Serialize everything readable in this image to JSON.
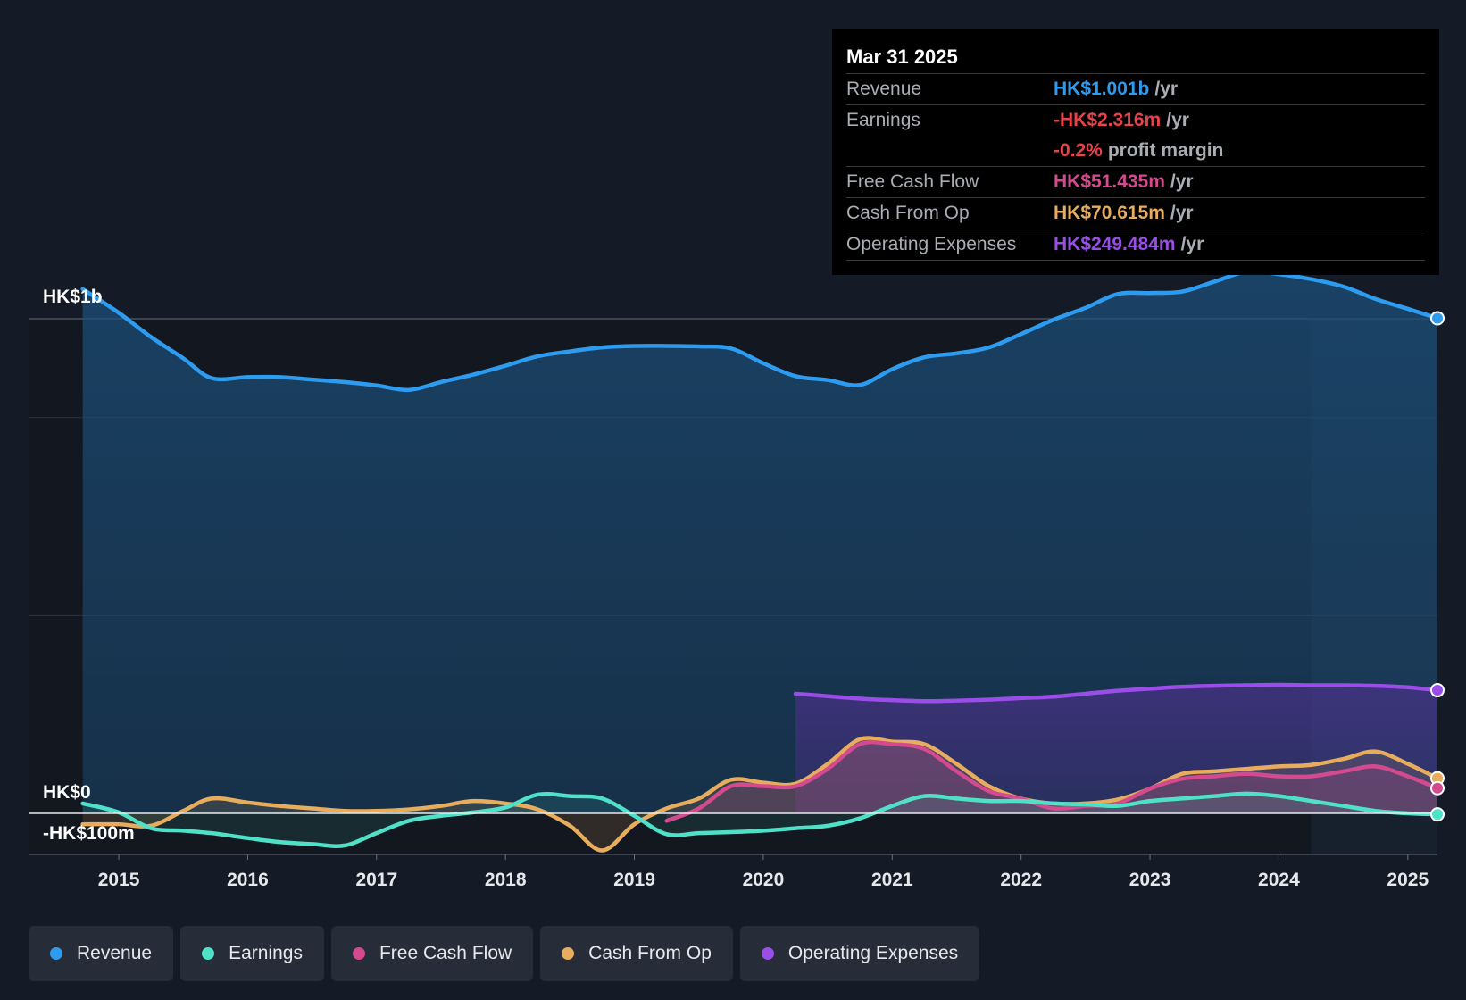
{
  "chart_data": {
    "type": "area",
    "currency": "HK$",
    "y_axis_labels": [
      "HK$1b",
      "HK$0",
      "-HK$100m"
    ],
    "ylim": [
      -100,
      1200
    ],
    "x_ticks": [
      "2015",
      "2016",
      "2017",
      "2018",
      "2019",
      "2020",
      "2021",
      "2022",
      "2023",
      "2024",
      "2025"
    ],
    "x_tick_values": [
      2015,
      2016,
      2017,
      2018,
      2019,
      2020,
      2021,
      2022,
      2023,
      2024,
      2025
    ],
    "xlim": [
      2014.3,
      2025.23
    ],
    "forecast_start": 2024.25,
    "series": [
      {
        "name": "Revenue",
        "color": "#2d9cf0",
        "x": [
          2014.72,
          2015.0,
          2015.25,
          2015.5,
          2015.72,
          2016.0,
          2016.25,
          2016.5,
          2016.75,
          2017.0,
          2017.25,
          2017.5,
          2017.75,
          2018.0,
          2018.25,
          2018.5,
          2018.75,
          2019.0,
          2019.25,
          2019.5,
          2019.75,
          2020.0,
          2020.25,
          2020.5,
          2020.75,
          2021.0,
          2021.25,
          2021.5,
          2021.75,
          2022.0,
          2022.25,
          2022.5,
          2022.75,
          2023.0,
          2023.25,
          2023.5,
          2023.75,
          2024.0,
          2024.25,
          2024.5,
          2024.75,
          2025.0,
          2025.23
        ],
        "values": [
          1060,
          1012,
          963,
          920,
          880,
          882,
          882,
          877,
          872,
          865,
          856,
          872,
          887,
          905,
          924,
          934,
          942,
          945,
          945,
          944,
          940,
          910,
          884,
          876,
          866,
          898,
          922,
          930,
          942,
          969,
          998,
          1022,
          1050,
          1052,
          1055,
          1075,
          1095,
          1090,
          1080,
          1065,
          1040,
          1020,
          1001
        ]
      },
      {
        "name": "Earnings",
        "color": "#4fe0c8",
        "x": [
          2014.72,
          2015.0,
          2015.25,
          2015.5,
          2015.72,
          2016.0,
          2016.25,
          2016.5,
          2016.75,
          2017.0,
          2017.25,
          2017.5,
          2017.75,
          2018.0,
          2018.25,
          2018.5,
          2018.75,
          2019.0,
          2019.25,
          2019.5,
          2019.75,
          2020.0,
          2020.25,
          2020.5,
          2020.75,
          2021.0,
          2021.25,
          2021.5,
          2021.75,
          2022.0,
          2022.25,
          2022.5,
          2022.75,
          2023.0,
          2023.25,
          2023.5,
          2023.75,
          2024.0,
          2024.25,
          2024.5,
          2024.75,
          2025.0,
          2025.23
        ],
        "values": [
          20,
          2,
          -30,
          -35,
          -40,
          -50,
          -58,
          -62,
          -65,
          -40,
          -15,
          -5,
          2,
          12,
          38,
          35,
          30,
          -5,
          -42,
          -40,
          -38,
          -35,
          -30,
          -25,
          -10,
          15,
          35,
          30,
          25,
          25,
          20,
          18,
          15,
          25,
          30,
          35,
          40,
          35,
          25,
          15,
          5,
          0,
          -2
        ]
      },
      {
        "name": "Free Cash Flow",
        "color": "#d44a8f",
        "x": [
          2019.25,
          2019.5,
          2019.75,
          2020.0,
          2020.25,
          2020.5,
          2020.75,
          2021.0,
          2021.25,
          2021.5,
          2021.75,
          2022.0,
          2022.25,
          2022.5,
          2022.75,
          2023.0,
          2023.25,
          2023.5,
          2023.75,
          2024.0,
          2024.25,
          2024.5,
          2024.75,
          2025.0,
          2025.23
        ],
        "values": [
          -15,
          10,
          55,
          55,
          55,
          90,
          140,
          140,
          130,
          85,
          45,
          30,
          10,
          15,
          20,
          50,
          70,
          75,
          80,
          75,
          75,
          85,
          95,
          75,
          51
        ]
      },
      {
        "name": "Cash From Op",
        "color": "#e7ad5c",
        "x": [
          2014.72,
          2015.0,
          2015.25,
          2015.5,
          2015.72,
          2016.0,
          2016.25,
          2016.5,
          2016.75,
          2017.0,
          2017.25,
          2017.5,
          2017.75,
          2018.0,
          2018.25,
          2018.5,
          2018.75,
          2019.0,
          2019.25,
          2019.5,
          2019.75,
          2020.0,
          2020.25,
          2020.5,
          2020.75,
          2021.0,
          2021.25,
          2021.5,
          2021.75,
          2022.0,
          2022.25,
          2022.5,
          2022.75,
          2023.0,
          2023.25,
          2023.5,
          2023.75,
          2024.0,
          2024.25,
          2024.5,
          2024.75,
          2025.0,
          2025.23
        ],
        "values": [
          -22,
          -22,
          -25,
          5,
          30,
          22,
          15,
          10,
          5,
          5,
          8,
          15,
          25,
          20,
          8,
          -25,
          -75,
          -22,
          10,
          30,
          68,
          62,
          60,
          100,
          150,
          145,
          140,
          100,
          55,
          30,
          20,
          20,
          28,
          50,
          80,
          85,
          90,
          95,
          98,
          110,
          125,
          100,
          71
        ]
      },
      {
        "name": "Operating Expenses",
        "color": "#9b4de8",
        "x": [
          2020.25,
          2020.5,
          2020.75,
          2021.0,
          2021.25,
          2021.5,
          2021.75,
          2022.0,
          2022.25,
          2022.5,
          2022.75,
          2023.0,
          2023.25,
          2023.5,
          2023.75,
          2024.0,
          2024.25,
          2024.5,
          2024.75,
          2025.0,
          2025.23
        ],
        "values": [
          242,
          237,
          232,
          229,
          227,
          228,
          230,
          233,
          236,
          242,
          248,
          252,
          256,
          258,
          259,
          260,
          259,
          259,
          258,
          255,
          249
        ]
      }
    ]
  },
  "tooltip": {
    "date": "Mar 31 2025",
    "rows": [
      {
        "label": "Revenue",
        "value": "HK$1.001b",
        "unit": "/yr",
        "color": "#2d9cf0"
      },
      {
        "label": "Earnings",
        "value": "-HK$2.316m",
        "unit": "/yr",
        "color": "#e8424a"
      },
      {
        "label": "",
        "value": "-0.2%",
        "unit": "profit margin",
        "color": "#e8424a"
      },
      {
        "label": "Free Cash Flow",
        "value": "HK$51.435m",
        "unit": "/yr",
        "color": "#d44a8f"
      },
      {
        "label": "Cash From Op",
        "value": "HK$70.615m",
        "unit": "/yr",
        "color": "#e7ad5c"
      },
      {
        "label": "Operating Expenses",
        "value": "HK$249.484m",
        "unit": "/yr",
        "color": "#9b4de8"
      }
    ]
  },
  "legend": [
    {
      "label": "Revenue",
      "color": "#2d9cf0"
    },
    {
      "label": "Earnings",
      "color": "#4fe0c8"
    },
    {
      "label": "Free Cash Flow",
      "color": "#d44a8f"
    },
    {
      "label": "Cash From Op",
      "color": "#e7ad5c"
    },
    {
      "label": "Operating Expenses",
      "color": "#9b4de8"
    }
  ]
}
